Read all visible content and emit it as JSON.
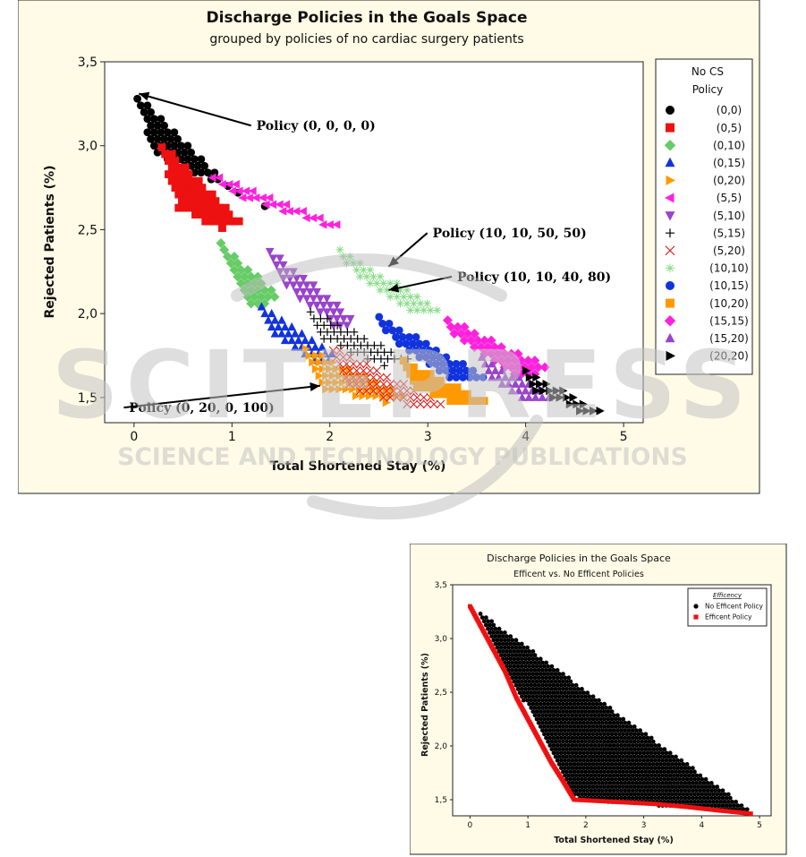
{
  "watermark": {
    "line1": "SCITEPRESS",
    "line2": "SCIENCE AND TECHNOLOGY PUBLICATIONS"
  },
  "chart_data": [
    {
      "type": "scatter",
      "title": "Discharge Policies in the Goals Space",
      "subtitle": "grouped by policies of no cardiac surgery patients",
      "xlabel": "Total Shortened Stay (%)",
      "ylabel": "Rejected Patients (%)",
      "xlim": [
        -0.3,
        5.2
      ],
      "ylim": [
        1.35,
        3.5
      ],
      "xticks": [
        0,
        1,
        2,
        3,
        4,
        5
      ],
      "xtick_labels": [
        "0",
        "1",
        "2",
        "3",
        "4",
        "5"
      ],
      "yticks": [
        1.5,
        2.0,
        2.5,
        3.0,
        3.5
      ],
      "ytick_labels": [
        "1,5",
        "2,0",
        "2,5",
        "3,0",
        "3,5"
      ],
      "legend": {
        "title_lines": [
          "No CS",
          "Policy"
        ],
        "placement": "right"
      },
      "series": [
        {
          "name": "(0,0)",
          "marker": "circle",
          "color": "#000000",
          "region": [
            [
              0.0,
              3.32
            ],
            [
              1.0,
              2.75
            ],
            [
              1.4,
              2.62
            ],
            [
              0.2,
              2.95
            ]
          ]
        },
        {
          "name": "(0,5)",
          "marker": "square",
          "color": "#ee1111",
          "region": [
            [
              0.25,
              3.03
            ],
            [
              1.1,
              2.55
            ],
            [
              0.9,
              2.5
            ],
            [
              0.45,
              2.62
            ]
          ]
        },
        {
          "name": "(0,10)",
          "marker": "diamond",
          "color": "#66cc66",
          "region": [
            [
              0.75,
              2.5
            ],
            [
              1.5,
              2.1
            ],
            [
              1.2,
              2.02
            ],
            [
              0.95,
              2.3
            ]
          ]
        },
        {
          "name": "(0,15)",
          "marker": "triangle-up",
          "color": "#1133dd",
          "region": [
            [
              1.2,
              2.08
            ],
            [
              2.1,
              1.75
            ],
            [
              1.9,
              1.68
            ],
            [
              1.45,
              1.85
            ]
          ]
        },
        {
          "name": "(0,20)",
          "marker": "triangle-right",
          "color": "#ff9900",
          "region": [
            [
              1.65,
              1.83
            ],
            [
              2.8,
              1.52
            ],
            [
              2.6,
              1.46
            ],
            [
              1.95,
              1.55
            ]
          ]
        },
        {
          "name": "(5,5)",
          "marker": "triangle-left",
          "color": "#ff22dd",
          "region": [
            [
              0.7,
              2.85
            ],
            [
              2.25,
              2.5
            ],
            [
              1.95,
              2.52
            ],
            [
              1.05,
              2.7
            ]
          ]
        },
        {
          "name": "(5,10)",
          "marker": "triangle-down",
          "color": "#9944cc",
          "region": [
            [
              1.25,
              2.45
            ],
            [
              2.3,
              1.95
            ],
            [
              2.1,
              1.9
            ],
            [
              1.55,
              2.15
            ]
          ]
        },
        {
          "name": "(5,15)",
          "marker": "plus",
          "color": "#000000",
          "region": [
            [
              1.7,
              2.05
            ],
            [
              2.85,
              1.72
            ],
            [
              2.55,
              1.68
            ],
            [
              1.9,
              1.85
            ]
          ]
        },
        {
          "name": "(5,20)",
          "marker": "cross",
          "color": "#dd2222",
          "region": [
            [
              2.0,
              1.82
            ],
            [
              3.2,
              1.45
            ],
            [
              2.9,
              1.43
            ],
            [
              2.2,
              1.55
            ]
          ]
        },
        {
          "name": "(10,10)",
          "marker": "asterisk",
          "color": "#88dd88",
          "region": [
            [
              2.0,
              2.42
            ],
            [
              3.15,
              2.02
            ],
            [
              2.85,
              2.0
            ],
            [
              2.3,
              2.2
            ]
          ]
        },
        {
          "name": "(10,15)",
          "marker": "circle",
          "color": "#1133dd",
          "region": [
            [
              2.4,
              2.02
            ],
            [
              3.6,
              1.62
            ],
            [
              3.3,
              1.58
            ],
            [
              2.7,
              1.8
            ]
          ]
        },
        {
          "name": "(10,20)",
          "marker": "square",
          "color": "#ff9900",
          "region": [
            [
              2.65,
              1.76
            ],
            [
              3.7,
              1.45
            ],
            [
              3.4,
              1.44
            ],
            [
              2.9,
              1.55
            ]
          ]
        },
        {
          "name": "(15,15)",
          "marker": "diamond",
          "color": "#ff22dd",
          "region": [
            [
              3.1,
              2.0
            ],
            [
              4.25,
              1.68
            ],
            [
              4.0,
              1.6
            ],
            [
              3.35,
              1.82
            ]
          ]
        },
        {
          "name": "(15,20)",
          "marker": "triangle-up",
          "color": "#9944cc",
          "region": [
            [
              3.45,
              1.78
            ],
            [
              4.3,
              1.5
            ],
            [
              4.05,
              1.47
            ],
            [
              3.65,
              1.6
            ]
          ]
        },
        {
          "name": "(20,20)",
          "marker": "triangle-right",
          "color": "#000000",
          "region": [
            [
              3.9,
              1.7
            ],
            [
              4.9,
              1.38
            ],
            [
              4.6,
              1.4
            ],
            [
              4.05,
              1.55
            ]
          ]
        }
      ],
      "annotations": [
        {
          "text": "Policy (0, 0, 0, 0)",
          "point": [
            0.05,
            3.31
          ],
          "label_at": [
            1.25,
            3.12
          ]
        },
        {
          "text": "Policy (10, 10, 50, 50)",
          "point": [
            2.6,
            2.28
          ],
          "label_at": [
            3.05,
            2.48
          ]
        },
        {
          "text": "Policy (10, 10, 40, 80)",
          "point": [
            2.6,
            2.14
          ],
          "label_at": [
            3.3,
            2.22
          ]
        },
        {
          "text": "Policy (0, 20, 0, 100)",
          "point": [
            1.9,
            1.57
          ],
          "label_at": [
            -0.05,
            1.44
          ]
        }
      ]
    },
    {
      "type": "scatter",
      "title": "Discharge Policies in the Goals Space",
      "subtitle": "Efficent vs. No Efficent Policies",
      "xlabel": "Total Shortened Stay (%)",
      "ylabel": "Rejected Patients (%)",
      "xlim": [
        -0.3,
        5.2
      ],
      "ylim": [
        1.35,
        3.5
      ],
      "xticks": [
        0,
        1,
        2,
        3,
        4,
        5
      ],
      "xtick_labels": [
        "0",
        "1",
        "2",
        "3",
        "4",
        "5"
      ],
      "yticks": [
        1.5,
        2.0,
        2.5,
        3.0,
        3.5
      ],
      "ytick_labels": [
        "1,5",
        "2,0",
        "2,5",
        "3,0",
        "3,5"
      ],
      "legend": {
        "title": "Efficency",
        "placement": "top-right"
      },
      "series": [
        {
          "name": "No Efficent Policy",
          "marker": "circle",
          "color": "#000000",
          "region": [
            [
              0.1,
              3.27
            ],
            [
              4.9,
              1.38
            ],
            [
              4.4,
              1.4
            ],
            [
              1.85,
              1.5
            ],
            [
              0.05,
              3.3
            ]
          ]
        },
        {
          "name": "Efficent Policy",
          "marker": "square",
          "color": "#ee1111",
          "frontier": [
            [
              0.0,
              3.3
            ],
            [
              0.2,
              3.1
            ],
            [
              0.4,
              2.9
            ],
            [
              0.6,
              2.7
            ],
            [
              0.8,
              2.45
            ],
            [
              1.0,
              2.25
            ],
            [
              1.2,
              2.05
            ],
            [
              1.4,
              1.85
            ],
            [
              1.6,
              1.68
            ],
            [
              1.8,
              1.5
            ],
            [
              2.5,
              1.48
            ],
            [
              3.2,
              1.46
            ],
            [
              3.8,
              1.43
            ],
            [
              4.3,
              1.4
            ],
            [
              4.85,
              1.37
            ]
          ]
        }
      ]
    }
  ]
}
